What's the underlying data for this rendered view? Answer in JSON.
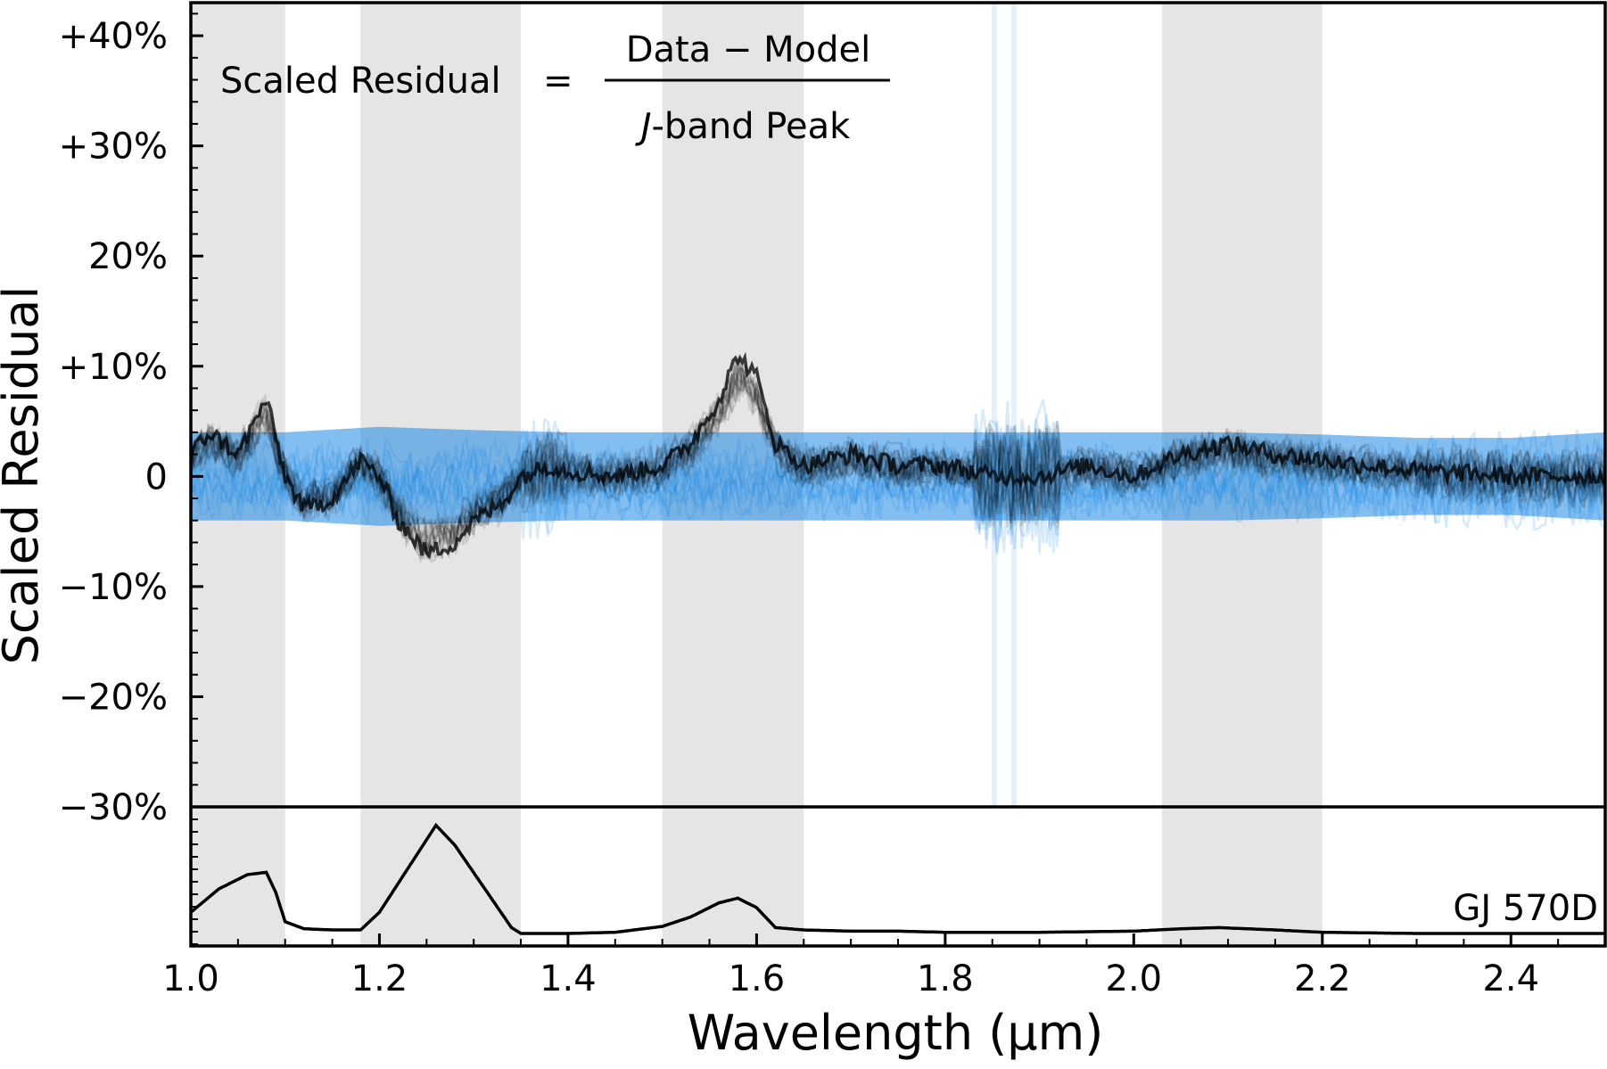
{
  "chart_data": {
    "type": "line",
    "title": "",
    "xlabel": "Wavelength (μm)",
    "ylabel": "Scaled Residual",
    "xlim": [
      1.0,
      2.5
    ],
    "ylim": [
      -30,
      43
    ],
    "grid": false,
    "x_ticks": [
      {
        "value": 1.0,
        "label": "1.0"
      },
      {
        "value": 1.2,
        "label": "1.2"
      },
      {
        "value": 1.4,
        "label": "1.4"
      },
      {
        "value": 1.6,
        "label": "1.6"
      },
      {
        "value": 1.8,
        "label": "1.8"
      },
      {
        "value": 2.0,
        "label": "2.0"
      },
      {
        "value": 2.2,
        "label": "2.2"
      },
      {
        "value": 2.4,
        "label": "2.4"
      }
    ],
    "y_ticks": [
      {
        "value": 40,
        "label": "+40%"
      },
      {
        "value": 30,
        "label": "+30%"
      },
      {
        "value": 20,
        "label": "20%"
      },
      {
        "value": 10,
        "label": "+10%"
      },
      {
        "value": 0,
        "label": "0"
      },
      {
        "value": -10,
        "label": "−10%"
      },
      {
        "value": -20,
        "label": "−20%"
      },
      {
        "value": -30,
        "label": "−30%"
      }
    ],
    "formula": {
      "lhs": "Scaled Residual",
      "equals": "=",
      "numerator": "Data − Model",
      "denominator_italic": "J",
      "denominator_rest": "-band Peak"
    },
    "shaded_bands": [
      {
        "x0": 1.0,
        "x1": 1.1
      },
      {
        "x0": 1.18,
        "x1": 1.35
      },
      {
        "x0": 1.5,
        "x1": 1.65
      },
      {
        "x0": 2.03,
        "x1": 2.2
      }
    ],
    "series": [
      {
        "role": "residual-envelope",
        "color": "#1E88E5",
        "x": [
          1.0,
          1.1,
          1.2,
          1.3,
          1.4,
          1.5,
          1.6,
          1.7,
          1.8,
          1.9,
          2.0,
          2.1,
          2.2,
          2.3,
          2.4,
          2.5
        ],
        "upper": [
          4,
          4,
          4.5,
          4.2,
          4,
          4,
          4,
          4,
          4,
          4,
          4,
          4,
          3.8,
          3.5,
          3.5,
          4
        ],
        "lower": [
          -4,
          -4,
          -4.5,
          -4.2,
          -4,
          -4,
          -4,
          -4,
          -4,
          -4,
          -4,
          -4,
          -3.8,
          -3.5,
          -3.5,
          -4
        ]
      },
      {
        "role": "median-residual",
        "color": "#000000",
        "x": [
          1.0,
          1.02,
          1.05,
          1.08,
          1.1,
          1.12,
          1.15,
          1.18,
          1.2,
          1.22,
          1.25,
          1.28,
          1.3,
          1.33,
          1.35,
          1.38,
          1.4,
          1.45,
          1.5,
          1.53,
          1.56,
          1.58,
          1.6,
          1.62,
          1.65,
          1.7,
          1.75,
          1.8,
          1.85,
          1.9,
          1.95,
          2.0,
          2.05,
          2.1,
          2.15,
          2.2,
          2.3,
          2.4,
          2.5
        ],
        "y": [
          2,
          4,
          2,
          7,
          0,
          -3,
          -2,
          1.5,
          0,
          -4,
          -7,
          -6,
          -4,
          -2.5,
          0,
          1,
          0.5,
          0,
          1,
          3,
          7,
          11,
          9,
          3,
          1,
          2,
          1,
          1,
          0,
          0,
          1,
          0,
          2,
          3,
          2,
          1.5,
          0.5,
          0,
          0
        ]
      },
      {
        "role": "gj570d-spectrum",
        "name": "GJ 570D",
        "color": "#000000",
        "x": [
          1.0,
          1.03,
          1.06,
          1.08,
          1.09,
          1.1,
          1.12,
          1.15,
          1.18,
          1.2,
          1.23,
          1.26,
          1.28,
          1.31,
          1.34,
          1.35,
          1.4,
          1.45,
          1.5,
          1.53,
          1.56,
          1.58,
          1.6,
          1.62,
          1.65,
          1.7,
          1.75,
          1.8,
          1.9,
          2.0,
          2.05,
          2.09,
          2.15,
          2.2,
          2.3,
          2.4,
          2.5
        ],
        "y": [
          0.18,
          0.38,
          0.5,
          0.52,
          0.35,
          0.1,
          0.04,
          0.03,
          0.03,
          0.18,
          0.55,
          0.92,
          0.75,
          0.4,
          0.05,
          0.0,
          0.0,
          0.01,
          0.06,
          0.14,
          0.26,
          0.3,
          0.22,
          0.05,
          0.03,
          0.02,
          0.02,
          0.01,
          0.01,
          0.02,
          0.04,
          0.05,
          0.03,
          0.01,
          0.0,
          0.0,
          0.0
        ],
        "label": "GJ 570D"
      }
    ]
  }
}
